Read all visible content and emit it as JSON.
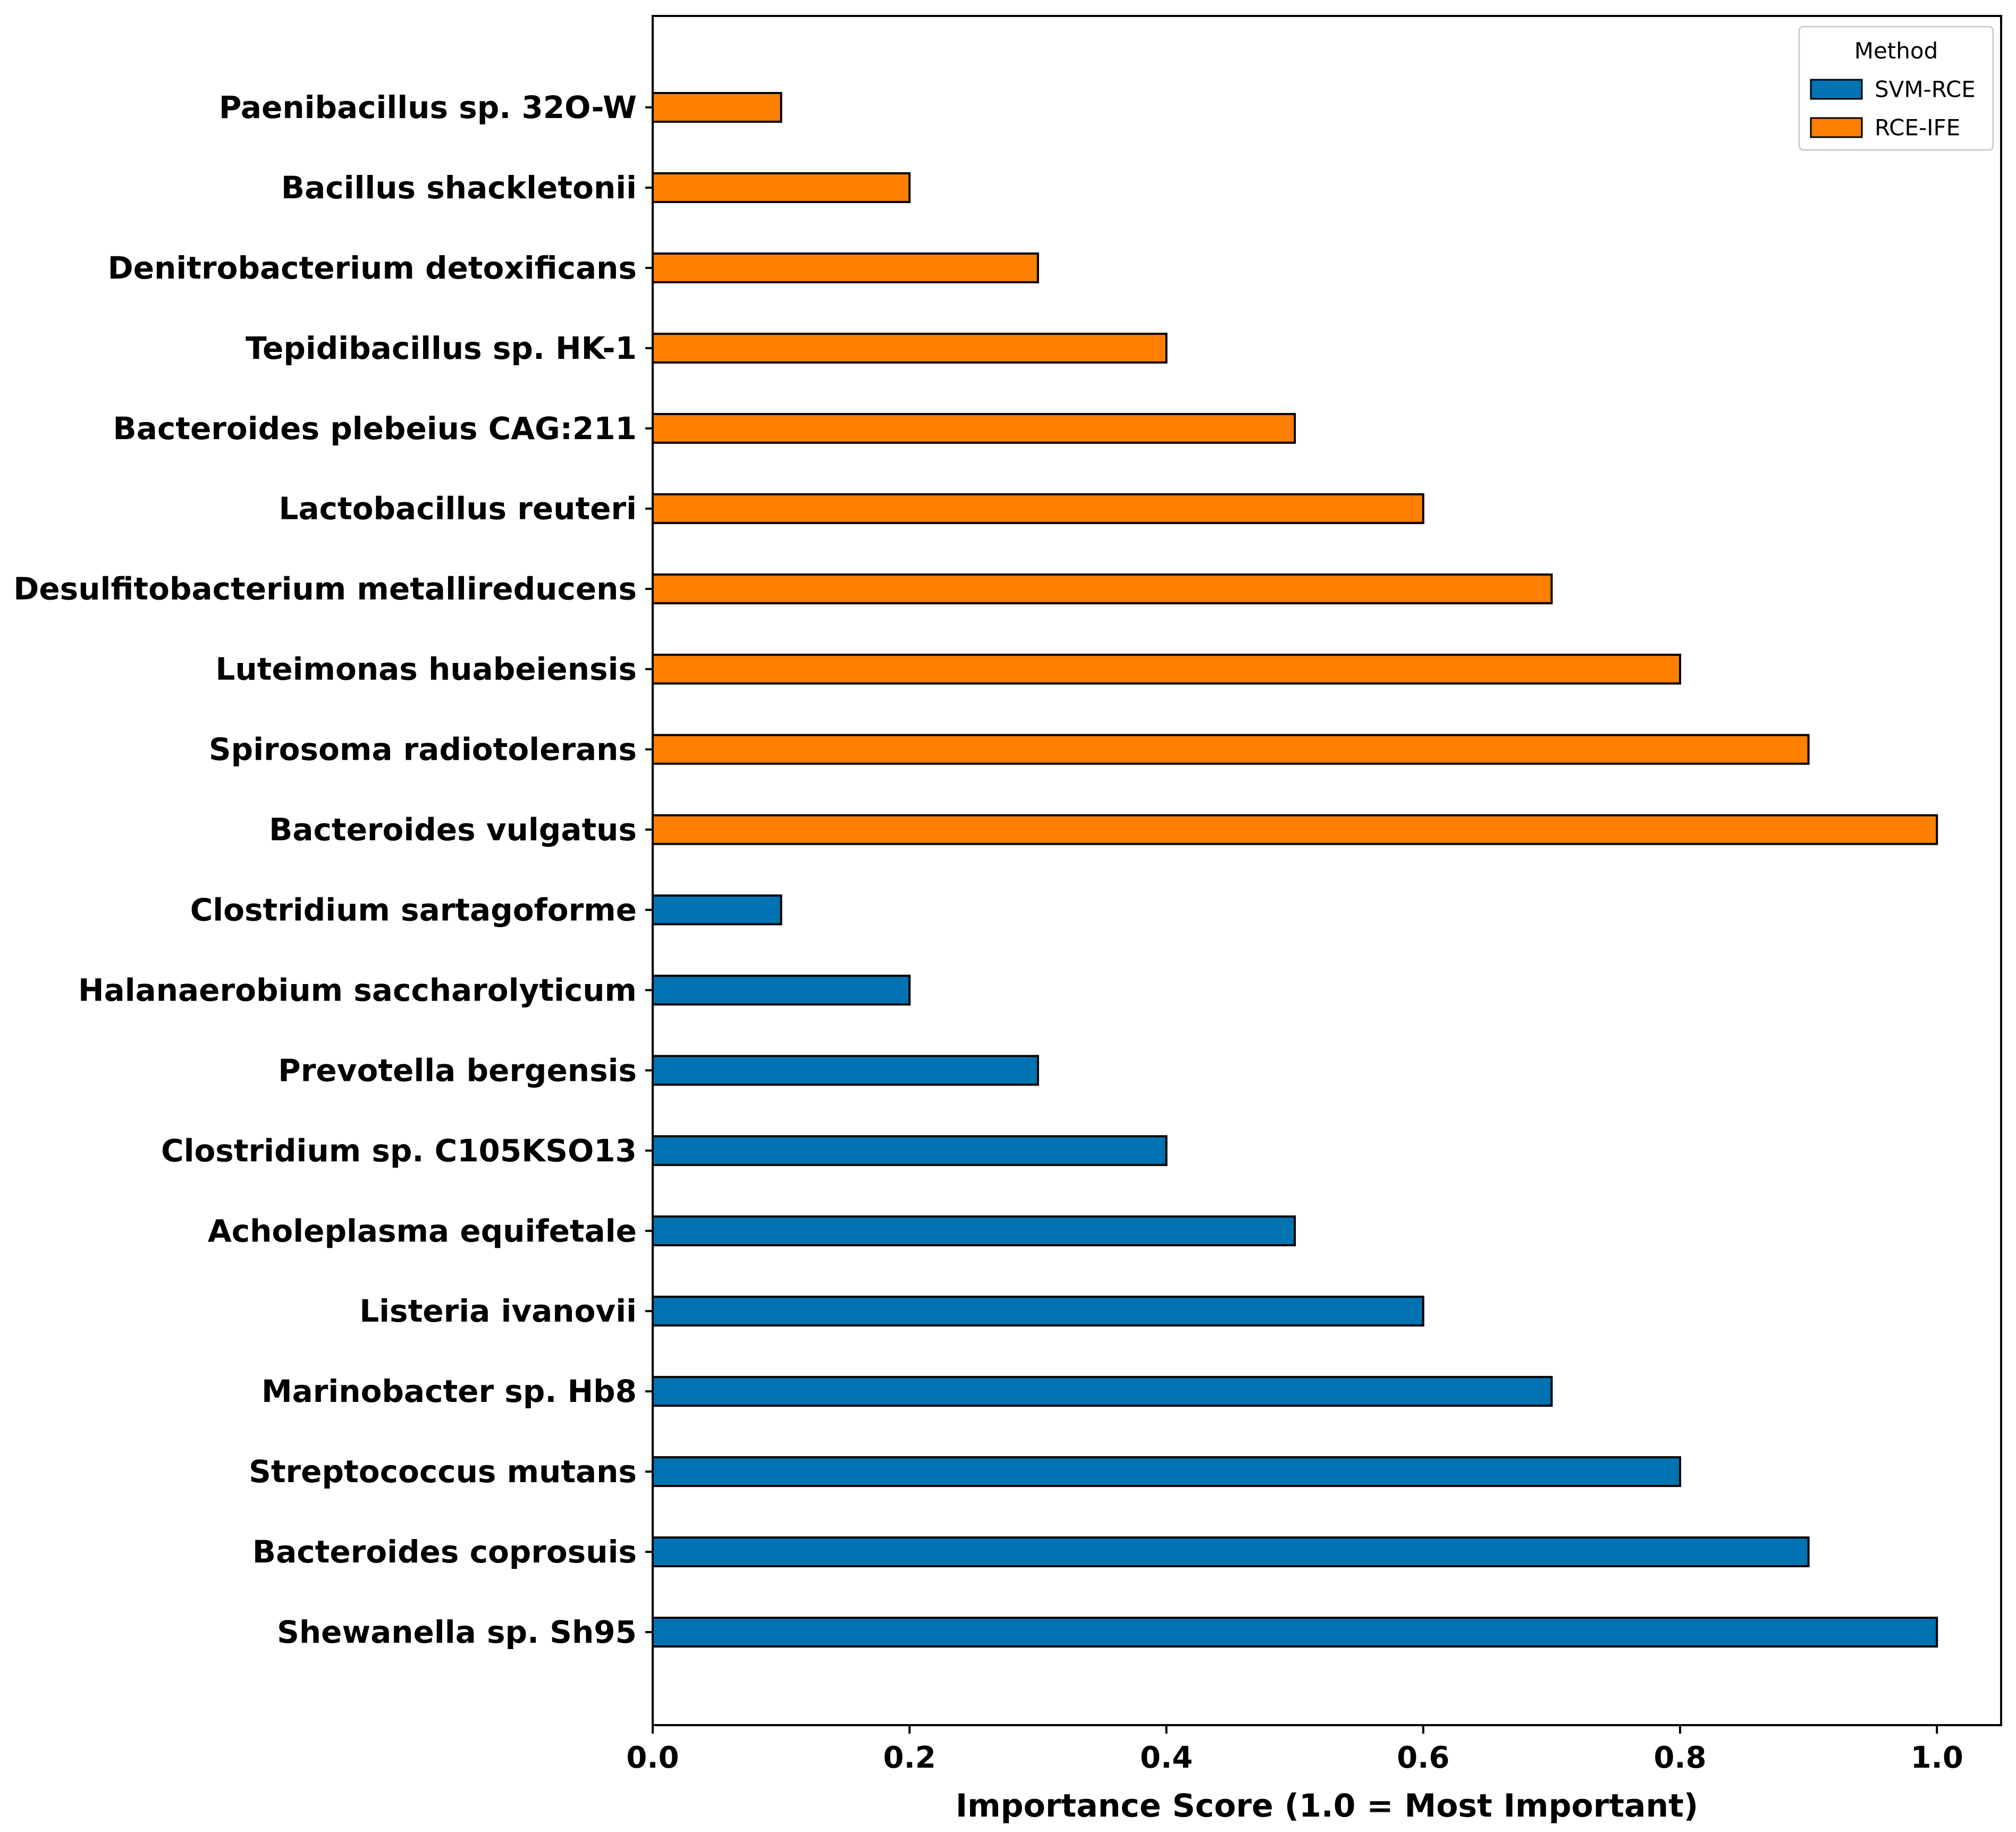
{
  "chart_data": {
    "type": "bar",
    "orientation": "horizontal",
    "xlabel": "Importance Score (1.0 = Most Important)",
    "ylabel": "",
    "xlim": [
      0,
      1.05
    ],
    "xticks": [
      "0.0",
      "0.2",
      "0.4",
      "0.6",
      "0.8",
      "1.0"
    ],
    "xtick_values": [
      0.0,
      0.2,
      0.4,
      0.6,
      0.8,
      1.0
    ],
    "grid": false,
    "legend": {
      "title": "Method",
      "placement": "top-right",
      "entries": [
        {
          "name": "SVM-RCE",
          "color": "#0173b2"
        },
        {
          "name": "RCE-IFE",
          "color": "#ff7f00"
        }
      ]
    },
    "series": [
      {
        "name": "RCE-IFE",
        "color": "#ff7f00",
        "categories": [
          "Paenibacillus sp. 32O-W",
          "Bacillus shackletonii",
          "Denitrobacterium detoxificans",
          "Tepidibacillus sp. HK-1",
          "Bacteroides plebeius CAG:211",
          "Lactobacillus reuteri",
          "Desulfitobacterium metallireducens",
          "Luteimonas huabeiensis",
          "Spirosoma radiotolerans",
          "Bacteroides vulgatus"
        ],
        "values": [
          0.1,
          0.2,
          0.3,
          0.4,
          0.5,
          0.6,
          0.7,
          0.8,
          0.9,
          1.0
        ]
      },
      {
        "name": "SVM-RCE",
        "color": "#0173b2",
        "categories": [
          "Clostridium sartagoforme",
          "Halanaerobium saccharolyticum",
          "Prevotella bergensis",
          "Clostridium sp. C105KSO13",
          "Acholeplasma equifetale",
          "Listeria ivanovii",
          "Marinobacter sp. Hb8",
          "Streptococcus mutans",
          "Bacteroides coprosuis",
          "Shewanella sp. Sh95"
        ],
        "values": [
          0.1,
          0.2,
          0.3,
          0.4,
          0.5,
          0.6,
          0.7,
          0.8,
          0.9,
          1.0
        ]
      }
    ]
  }
}
